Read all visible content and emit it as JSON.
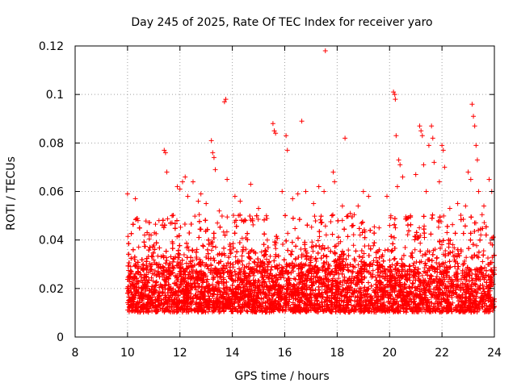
{
  "chart_data": {
    "type": "scatter",
    "title": "Day 245 of 2025, Rate Of TEC Index for receiver yaro",
    "xlabel": "GPS time / hours",
    "ylabel": "ROTI / TECUs",
    "xlim": [
      8,
      24
    ],
    "ylim": [
      0,
      0.12
    ],
    "xticks": [
      8,
      10,
      12,
      14,
      16,
      18,
      20,
      22,
      24
    ],
    "yticks": [
      0,
      0.02,
      0.04,
      0.06,
      0.08,
      0.1,
      0.12
    ],
    "xtick_labels": [
      "8",
      "10",
      "12",
      "14",
      "16",
      "18",
      "20",
      "22",
      "24"
    ],
    "ytick_labels": [
      "0",
      "0.02",
      "0.04",
      "0.06",
      "0.08",
      "0.1",
      "0.12"
    ],
    "grid": true,
    "marker": "+",
    "marker_color": "#ff0000",
    "series": [
      {
        "name": "ROTI",
        "data_range_x": [
          10,
          24
        ],
        "typical_band": [
          0.005,
          0.04
        ],
        "points": [
          [
            10.0,
            0.059
          ],
          [
            10.1,
            0.02
          ],
          [
            10.3,
            0.057
          ],
          [
            10.4,
            0.048
          ],
          [
            10.6,
            0.03
          ],
          [
            10.9,
            0.042
          ],
          [
            11.2,
            0.048
          ],
          [
            11.4,
            0.077
          ],
          [
            11.45,
            0.076
          ],
          [
            11.5,
            0.068
          ],
          [
            11.7,
            0.05
          ],
          [
            11.9,
            0.062
          ],
          [
            12.0,
            0.061
          ],
          [
            12.1,
            0.064
          ],
          [
            12.2,
            0.066
          ],
          [
            12.3,
            0.058
          ],
          [
            12.5,
            0.064
          ],
          [
            12.7,
            0.056
          ],
          [
            12.8,
            0.059
          ],
          [
            13.0,
            0.055
          ],
          [
            13.2,
            0.081
          ],
          [
            13.25,
            0.076
          ],
          [
            13.3,
            0.074
          ],
          [
            13.35,
            0.069
          ],
          [
            13.5,
            0.052
          ],
          [
            13.7,
            0.097
          ],
          [
            13.75,
            0.098
          ],
          [
            13.8,
            0.065
          ],
          [
            14.1,
            0.058
          ],
          [
            14.3,
            0.056
          ],
          [
            14.5,
            0.048
          ],
          [
            14.7,
            0.063
          ],
          [
            15.0,
            0.053
          ],
          [
            15.3,
            0.05
          ],
          [
            15.55,
            0.088
          ],
          [
            15.6,
            0.085
          ],
          [
            15.65,
            0.084
          ],
          [
            15.9,
            0.06
          ],
          [
            16.05,
            0.083
          ],
          [
            16.1,
            0.077
          ],
          [
            16.3,
            0.057
          ],
          [
            16.5,
            0.059
          ],
          [
            16.65,
            0.089
          ],
          [
            16.8,
            0.06
          ],
          [
            17.1,
            0.055
          ],
          [
            17.3,
            0.062
          ],
          [
            17.5,
            0.06
          ],
          [
            17.55,
            0.118
          ],
          [
            17.85,
            0.068
          ],
          [
            17.9,
            0.064
          ],
          [
            18.2,
            0.054
          ],
          [
            18.3,
            0.082
          ],
          [
            18.5,
            0.051
          ],
          [
            18.8,
            0.054
          ],
          [
            19.0,
            0.06
          ],
          [
            19.2,
            0.058
          ],
          [
            19.6,
            0.045
          ],
          [
            19.9,
            0.058
          ],
          [
            20.05,
            0.05
          ],
          [
            20.15,
            0.101
          ],
          [
            20.2,
            0.1
          ],
          [
            20.22,
            0.098
          ],
          [
            20.25,
            0.083
          ],
          [
            20.3,
            0.062
          ],
          [
            20.35,
            0.073
          ],
          [
            20.4,
            0.071
          ],
          [
            20.5,
            0.066
          ],
          [
            20.8,
            0.05
          ],
          [
            21.0,
            0.067
          ],
          [
            21.15,
            0.087
          ],
          [
            21.2,
            0.085
          ],
          [
            21.25,
            0.083
          ],
          [
            21.3,
            0.071
          ],
          [
            21.4,
            0.06
          ],
          [
            21.5,
            0.079
          ],
          [
            21.6,
            0.087
          ],
          [
            21.65,
            0.082
          ],
          [
            21.7,
            0.072
          ],
          [
            21.9,
            0.064
          ],
          [
            22.0,
            0.079
          ],
          [
            22.05,
            0.077
          ],
          [
            22.1,
            0.07
          ],
          [
            22.3,
            0.053
          ],
          [
            22.6,
            0.055
          ],
          [
            22.9,
            0.054
          ],
          [
            23.0,
            0.068
          ],
          [
            23.1,
            0.065
          ],
          [
            23.15,
            0.096
          ],
          [
            23.2,
            0.091
          ],
          [
            23.25,
            0.087
          ],
          [
            23.3,
            0.079
          ],
          [
            23.35,
            0.073
          ],
          [
            23.4,
            0.06
          ],
          [
            23.6,
            0.054
          ],
          [
            23.8,
            0.065
          ],
          [
            23.9,
            0.06
          ]
        ]
      }
    ]
  }
}
